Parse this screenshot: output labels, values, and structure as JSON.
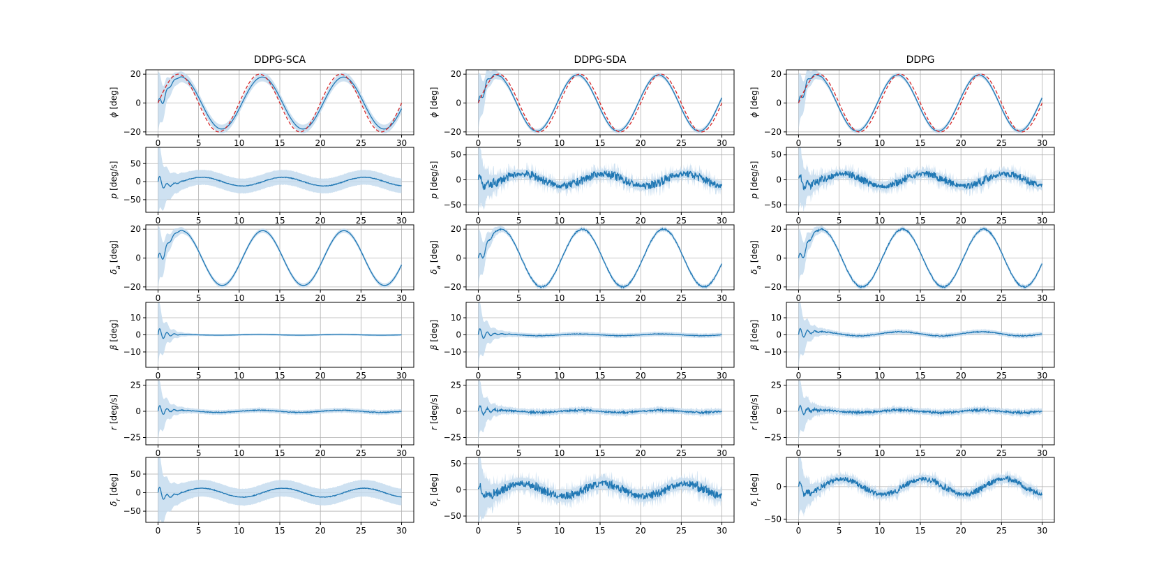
{
  "figure": {
    "columns": [
      "DDPG-SCA",
      "DDPG-SDA",
      "DDPG"
    ],
    "rows": [
      {
        "key": "phi",
        "sym": "ϕ",
        "sub": "",
        "unit": "[deg]"
      },
      {
        "key": "p",
        "sym": "p",
        "sub": "",
        "unit": "[deg/s]"
      },
      {
        "key": "delta_a",
        "sym": "δ",
        "sub": "a",
        "unit": "[deg]"
      },
      {
        "key": "beta",
        "sym": "β",
        "sub": "",
        "unit": "[deg]"
      },
      {
        "key": "r",
        "sym": "r",
        "sub": "",
        "unit": "[deg/s]"
      },
      {
        "key": "delta_r",
        "sym": "δ",
        "sub": "r",
        "unit": "[deg]"
      }
    ],
    "colors": {
      "mean": "#1f77b4",
      "band": "#c6dcef",
      "reference": "#d62728",
      "grid": "#b0b0b0"
    }
  },
  "chart_data": {
    "type": "line",
    "x": {
      "label": "",
      "lim": [
        -1.5,
        31.5
      ],
      "ticks": [
        0,
        5,
        10,
        15,
        20,
        25,
        30
      ],
      "tick_labels": [
        "0",
        "5",
        "10",
        "15",
        "20",
        "25",
        "30"
      ]
    },
    "subplots": [
      {
        "row": "phi",
        "column": "DDPG-SCA",
        "ylim": [
          -22,
          23
        ],
        "yticks": [
          -20,
          0,
          20
        ],
        "ytick_labels": [
          "−20",
          "0",
          "20"
        ],
        "reference": {
          "kind": "sine",
          "amp": 20,
          "period": 10,
          "phase": 0
        },
        "mean": {
          "kind": "sine",
          "amp": 18,
          "period": 10,
          "lag": 0.35,
          "start": 0
        },
        "band": 3,
        "band_initial": 18,
        "noise": 0
      },
      {
        "row": "p",
        "column": "DDPG-SCA",
        "ylim": [
          -85,
          95
        ],
        "yticks": [
          -50,
          0,
          50
        ],
        "ytick_labels": [
          "−50",
          "0",
          "50"
        ],
        "mean": {
          "kind": "cos",
          "amp": 12,
          "period": 10,
          "lag": 0.4,
          "start": 0
        },
        "band": 20,
        "band_initial": 85,
        "noise": 1
      },
      {
        "row": "delta_a",
        "column": "DDPG-SCA",
        "ylim": [
          -22,
          23
        ],
        "yticks": [
          -20,
          0,
          20
        ],
        "ytick_labels": [
          "−20",
          "0",
          "20"
        ],
        "mean": {
          "kind": "sine",
          "amp": 19,
          "period": 10,
          "lag": 0.4,
          "start": 0
        },
        "band": 1.5,
        "band_initial": 20,
        "noise": 0
      },
      {
        "row": "beta",
        "column": "DDPG-SCA",
        "ylim": [
          -19,
          19
        ],
        "yticks": [
          -10,
          0,
          10
        ],
        "ytick_labels": [
          "−10",
          "0",
          "10"
        ],
        "mean": {
          "kind": "sine",
          "amp": 0.2,
          "period": 10,
          "lag": 0,
          "start": 0
        },
        "band": 0.6,
        "band_initial": 18,
        "noise": 0
      },
      {
        "row": "r",
        "column": "DDPG-SCA",
        "ylim": [
          -32,
          30
        ],
        "yticks": [
          -25,
          0,
          25
        ],
        "ytick_labels": [
          "−25",
          "0",
          "25"
        ],
        "mean": {
          "kind": "sine",
          "amp": 1,
          "period": 10,
          "lag": 0,
          "start": 0
        },
        "band": 2,
        "band_initial": 27,
        "noise": 0.4
      },
      {
        "row": "delta_r",
        "column": "DDPG-SCA",
        "ylim": [
          -80,
          95
        ],
        "yticks": [
          -50,
          0,
          50
        ],
        "ytick_labels": [
          "−50",
          "0",
          "50"
        ],
        "mean": {
          "kind": "cos",
          "amp": 12,
          "period": 10,
          "lag": 0.4,
          "start": 0
        },
        "band": 22,
        "band_initial": 85,
        "noise": 1
      },
      {
        "row": "phi",
        "column": "DDPG-SDA",
        "ylim": [
          -22,
          23
        ],
        "yticks": [
          -20,
          0,
          20
        ],
        "ytick_labels": [
          "−20",
          "0",
          "20"
        ],
        "reference": {
          "kind": "sine",
          "amp": 20,
          "period": 10,
          "phase": 0
        },
        "mean": {
          "kind": "sine",
          "amp": 19.5,
          "period": 10,
          "lag": -0.3,
          "start": 0
        },
        "band": 1.5,
        "band_initial": 18,
        "noise": 0
      },
      {
        "row": "p",
        "column": "DDPG-SDA",
        "ylim": [
          -65,
          65
        ],
        "yticks": [
          -50,
          0,
          50
        ],
        "ytick_labels": [
          "−50",
          "0",
          "50"
        ],
        "mean": {
          "kind": "cos",
          "amp": 12,
          "period": 10,
          "lag": 0.4,
          "start": 0
        },
        "band": 8,
        "band_initial": 60,
        "noise": 9
      },
      {
        "row": "delta_a",
        "column": "DDPG-SDA",
        "ylim": [
          -22,
          23
        ],
        "yticks": [
          -20,
          0,
          20
        ],
        "ytick_labels": [
          "−20",
          "0",
          "20"
        ],
        "mean": {
          "kind": "sine",
          "amp": 20,
          "period": 10,
          "lag": 0.3,
          "start": 0
        },
        "band": 1.2,
        "band_initial": 18,
        "noise": 0.5
      },
      {
        "row": "beta",
        "column": "DDPG-SDA",
        "ylim": [
          -19,
          19
        ],
        "yticks": [
          -10,
          0,
          10
        ],
        "ytick_labels": [
          "−10",
          "0",
          "10"
        ],
        "mean": {
          "kind": "sine",
          "amp": 0.5,
          "period": 10,
          "lag": 0,
          "start": 0
        },
        "band": 1.2,
        "band_initial": 18,
        "noise": 0.2
      },
      {
        "row": "r",
        "column": "DDPG-SDA",
        "ylim": [
          -32,
          30
        ],
        "yticks": [
          -25,
          0,
          25
        ],
        "ytick_labels": [
          "−25",
          "0",
          "25"
        ],
        "mean": {
          "kind": "sine",
          "amp": 1,
          "period": 10,
          "lag": 0,
          "start": 0
        },
        "band": 2.5,
        "band_initial": 27,
        "noise": 1
      },
      {
        "row": "delta_r",
        "column": "DDPG-SDA",
        "ylim": [
          -62,
          62
        ],
        "yticks": [
          -50,
          0,
          50
        ],
        "ytick_labels": [
          "−50",
          "0",
          "50"
        ],
        "mean": {
          "kind": "cos",
          "amp": 12,
          "period": 10,
          "lag": 0.4,
          "start": 0
        },
        "band": 10,
        "band_initial": 60,
        "noise": 9
      },
      {
        "row": "phi",
        "column": "DDPG",
        "ylim": [
          -22,
          23
        ],
        "yticks": [
          -20,
          0,
          20
        ],
        "ytick_labels": [
          "−20",
          "0",
          "20"
        ],
        "reference": {
          "kind": "sine",
          "amp": 20,
          "period": 10,
          "phase": 0
        },
        "mean": {
          "kind": "sine",
          "amp": 19.5,
          "period": 10,
          "lag": -0.3,
          "start": 0
        },
        "band": 1.5,
        "band_initial": 18,
        "noise": 0
      },
      {
        "row": "p",
        "column": "DDPG",
        "ylim": [
          -65,
          65
        ],
        "yticks": [
          -50,
          0,
          50
        ],
        "ytick_labels": [
          "−50",
          "0",
          "50"
        ],
        "mean": {
          "kind": "cos",
          "amp": 12,
          "period": 10,
          "lag": 0.4,
          "start": 0
        },
        "band": 8,
        "band_initial": 60,
        "noise": 8
      },
      {
        "row": "delta_a",
        "column": "DDPG",
        "ylim": [
          -22,
          23
        ],
        "yticks": [
          -20,
          0,
          20
        ],
        "ytick_labels": [
          "−20",
          "0",
          "20"
        ],
        "mean": {
          "kind": "sine",
          "amp": 20,
          "period": 10,
          "lag": 0.3,
          "start": 0
        },
        "band": 1.2,
        "band_initial": 18,
        "noise": 0.5
      },
      {
        "row": "beta",
        "column": "DDPG",
        "ylim": [
          -19,
          19
        ],
        "yticks": [
          -10,
          0,
          10
        ],
        "ytick_labels": [
          "−10",
          "0",
          "10"
        ],
        "mean": {
          "kind": "sine",
          "amp": 1.2,
          "period": 10,
          "lag": 0,
          "start": 0.6
        },
        "band": 1.2,
        "band_initial": 18,
        "noise": 0.3
      },
      {
        "row": "r",
        "column": "DDPG",
        "ylim": [
          -32,
          30
        ],
        "yticks": [
          -25,
          0,
          25
        ],
        "ytick_labels": [
          "−25",
          "0",
          "25"
        ],
        "mean": {
          "kind": "sine",
          "amp": 1.2,
          "period": 10,
          "lag": 0,
          "start": 0
        },
        "band": 2.5,
        "band_initial": 27,
        "noise": 1.2
      },
      {
        "row": "delta_r",
        "column": "DDPG",
        "ylim": [
          -55,
          45
        ],
        "yticks": [
          -50,
          0
        ],
        "ytick_labels": [
          "−50",
          "0"
        ],
        "mean": {
          "kind": "cos",
          "amp": 12,
          "period": 10,
          "lag": 0.4,
          "start": 0
        },
        "band": 6,
        "band_initial": 45,
        "noise": 5
      }
    ]
  }
}
